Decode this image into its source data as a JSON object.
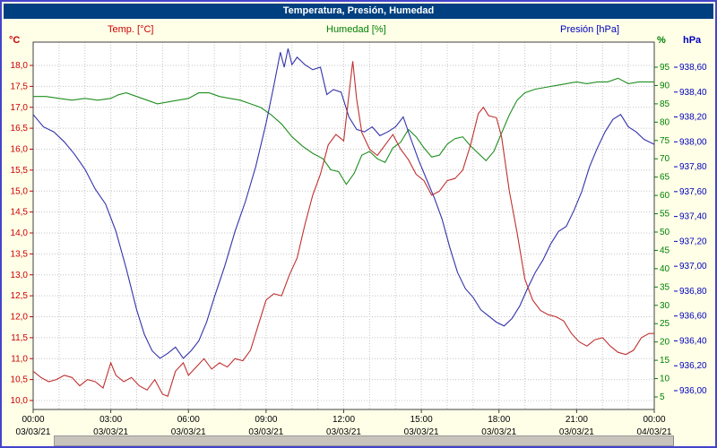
{
  "window": {
    "title": "Temperatura, Presión, Humedad"
  },
  "legend": {
    "temp": "Temp. [°C]",
    "humidity": "Humedad [%]",
    "pressure": "Presión [hPa]"
  },
  "axes": {
    "temp": {
      "unit": "°C",
      "color": "#CC0000",
      "min": 10.0,
      "max": 18.0,
      "tick_labels": [
        "18,0",
        "17,5",
        "17,0",
        "16,5",
        "16,0",
        "15,5",
        "15,0",
        "14,5",
        "14,0",
        "13,5",
        "13,0",
        "12,5",
        "12,0",
        "11,5",
        "11,0",
        "10,5",
        "10,0"
      ]
    },
    "humidity": {
      "unit": "%",
      "color": "#007F00",
      "min": 5,
      "max": 95,
      "tick_labels": [
        "95",
        "90",
        "85",
        "80",
        "75",
        "70",
        "65",
        "60",
        "55",
        "50",
        "45",
        "40",
        "35",
        "30",
        "25",
        "20",
        "15",
        "10",
        "5"
      ]
    },
    "pressure": {
      "unit": "hPa",
      "color": "#0000BB",
      "min": 936.0,
      "max": 938.6,
      "tick_labels": [
        "938,60",
        "938,40",
        "938,20",
        "938,00",
        "937,80",
        "937,60",
        "937,40",
        "937,20",
        "937,00",
        "936,80",
        "936,60",
        "936,40",
        "936,20",
        "936,00"
      ]
    },
    "x": {
      "time_labels": [
        "00:00",
        "03:00",
        "06:00",
        "09:00",
        "12:00",
        "15:00",
        "18:00",
        "21:00",
        "00:00"
      ],
      "date_labels": [
        "03/03/21",
        "03/03/21",
        "03/03/21",
        "03/03/21",
        "03/03/21",
        "03/03/21",
        "03/03/21",
        "03/03/21",
        "04/03/21"
      ]
    }
  },
  "chart_data": {
    "type": "line",
    "title": "Temperatura, Presión, Humedad",
    "x_axis": {
      "start": "03/03/21 00:00",
      "end": "04/03/21 00:00",
      "unit": "hours",
      "tick_interval_hours": 3
    },
    "grid": true,
    "legend_position": "top",
    "series": [
      {
        "name": "Humedad [%]",
        "axis": "humidity",
        "color": "#1F8F1F",
        "ylim": [
          5,
          95
        ],
        "points": [
          [
            0,
            87
          ],
          [
            0.5,
            87
          ],
          [
            1,
            86.5
          ],
          [
            1.5,
            86
          ],
          [
            2,
            86.5
          ],
          [
            2.5,
            86
          ],
          [
            3,
            86.5
          ],
          [
            3.3,
            87.5
          ],
          [
            3.6,
            88
          ],
          [
            4,
            87
          ],
          [
            4.4,
            86
          ],
          [
            4.8,
            85
          ],
          [
            5.2,
            85.5
          ],
          [
            5.6,
            86
          ],
          [
            6,
            86.5
          ],
          [
            6.4,
            88
          ],
          [
            6.8,
            88
          ],
          [
            7.2,
            87
          ],
          [
            7.6,
            86.5
          ],
          [
            8,
            86
          ],
          [
            8.4,
            85
          ],
          [
            8.8,
            84
          ],
          [
            9.2,
            82
          ],
          [
            9.6,
            79.5
          ],
          [
            10,
            76
          ],
          [
            10.4,
            73.5
          ],
          [
            10.8,
            71.5
          ],
          [
            11.2,
            70
          ],
          [
            11.5,
            67
          ],
          [
            11.8,
            66.5
          ],
          [
            12.1,
            63
          ],
          [
            12.4,
            66
          ],
          [
            12.7,
            71
          ],
          [
            13,
            72
          ],
          [
            13.3,
            70
          ],
          [
            13.6,
            69
          ],
          [
            13.9,
            73
          ],
          [
            14.2,
            74.5
          ],
          [
            14.5,
            78
          ],
          [
            14.8,
            76
          ],
          [
            15.1,
            73
          ],
          [
            15.4,
            70.5
          ],
          [
            15.7,
            71
          ],
          [
            16,
            74
          ],
          [
            16.3,
            75.5
          ],
          [
            16.6,
            76
          ],
          [
            16.9,
            73.5
          ],
          [
            17.2,
            71.5
          ],
          [
            17.5,
            69.5
          ],
          [
            17.8,
            72
          ],
          [
            18.1,
            77
          ],
          [
            18.4,
            82
          ],
          [
            18.7,
            86
          ],
          [
            19,
            88
          ],
          [
            19.4,
            89
          ],
          [
            19.8,
            89.5
          ],
          [
            20.2,
            90
          ],
          [
            20.6,
            90.5
          ],
          [
            21,
            91
          ],
          [
            21.4,
            90.5
          ],
          [
            21.8,
            91
          ],
          [
            22.2,
            91
          ],
          [
            22.6,
            92
          ],
          [
            23,
            90.5
          ],
          [
            23.4,
            91
          ],
          [
            23.8,
            91
          ],
          [
            24,
            91
          ]
        ]
      },
      {
        "name": "Presión [hPa]",
        "axis": "pressure",
        "color": "#3333AA",
        "ylim": [
          936.0,
          938.6
        ],
        "points": [
          [
            0,
            938.22
          ],
          [
            0.4,
            938.12
          ],
          [
            0.8,
            938.08
          ],
          [
            1.2,
            938.0
          ],
          [
            1.6,
            937.9
          ],
          [
            2.0,
            937.78
          ],
          [
            2.4,
            937.62
          ],
          [
            2.8,
            937.5
          ],
          [
            3.2,
            937.28
          ],
          [
            3.6,
            936.98
          ],
          [
            4.0,
            936.65
          ],
          [
            4.3,
            936.45
          ],
          [
            4.6,
            936.32
          ],
          [
            4.9,
            936.26
          ],
          [
            5.2,
            936.3
          ],
          [
            5.5,
            936.35
          ],
          [
            5.8,
            936.26
          ],
          [
            6.1,
            936.32
          ],
          [
            6.4,
            936.4
          ],
          [
            6.7,
            936.55
          ],
          [
            7.0,
            936.75
          ],
          [
            7.4,
            937.0
          ],
          [
            7.8,
            937.28
          ],
          [
            8.2,
            937.52
          ],
          [
            8.6,
            937.8
          ],
          [
            9.0,
            938.15
          ],
          [
            9.3,
            938.45
          ],
          [
            9.55,
            938.72
          ],
          [
            9.7,
            938.6
          ],
          [
            9.85,
            938.75
          ],
          [
            10.0,
            938.62
          ],
          [
            10.2,
            938.68
          ],
          [
            10.5,
            938.62
          ],
          [
            10.8,
            938.58
          ],
          [
            11.1,
            938.6
          ],
          [
            11.35,
            938.38
          ],
          [
            11.6,
            938.42
          ],
          [
            11.9,
            938.4
          ],
          [
            12.2,
            938.2
          ],
          [
            12.5,
            938.1
          ],
          [
            12.8,
            938.08
          ],
          [
            13.1,
            938.12
          ],
          [
            13.4,
            938.05
          ],
          [
            13.7,
            938.08
          ],
          [
            14.0,
            938.12
          ],
          [
            14.3,
            938.2
          ],
          [
            14.6,
            938.02
          ],
          [
            14.9,
            937.85
          ],
          [
            15.2,
            937.7
          ],
          [
            15.5,
            937.55
          ],
          [
            15.8,
            937.38
          ],
          [
            16.1,
            937.15
          ],
          [
            16.4,
            936.95
          ],
          [
            16.7,
            936.82
          ],
          [
            17.0,
            936.75
          ],
          [
            17.3,
            936.65
          ],
          [
            17.6,
            936.6
          ],
          [
            17.9,
            936.55
          ],
          [
            18.2,
            936.52
          ],
          [
            18.5,
            936.58
          ],
          [
            18.8,
            936.68
          ],
          [
            19.1,
            936.82
          ],
          [
            19.4,
            936.95
          ],
          [
            19.7,
            937.05
          ],
          [
            20.0,
            937.18
          ],
          [
            20.3,
            937.28
          ],
          [
            20.6,
            937.32
          ],
          [
            20.9,
            937.45
          ],
          [
            21.2,
            937.6
          ],
          [
            21.5,
            937.8
          ],
          [
            21.8,
            937.95
          ],
          [
            22.1,
            938.08
          ],
          [
            22.4,
            938.18
          ],
          [
            22.7,
            938.22
          ],
          [
            23.0,
            938.12
          ],
          [
            23.3,
            938.08
          ],
          [
            23.6,
            938.02
          ],
          [
            24,
            937.98
          ]
        ]
      },
      {
        "name": "Temp. [°C]",
        "axis": "temp",
        "color": "#C03030",
        "ylim": [
          10.0,
          18.0
        ],
        "points": [
          [
            0,
            10.7
          ],
          [
            0.3,
            10.55
          ],
          [
            0.6,
            10.45
          ],
          [
            0.9,
            10.5
          ],
          [
            1.2,
            10.6
          ],
          [
            1.5,
            10.55
          ],
          [
            1.8,
            10.35
          ],
          [
            2.1,
            10.5
          ],
          [
            2.4,
            10.45
          ],
          [
            2.7,
            10.3
          ],
          [
            3.0,
            10.9
          ],
          [
            3.2,
            10.6
          ],
          [
            3.5,
            10.45
          ],
          [
            3.8,
            10.55
          ],
          [
            4.1,
            10.35
          ],
          [
            4.4,
            10.25
          ],
          [
            4.7,
            10.5
          ],
          [
            5.0,
            10.15
          ],
          [
            5.2,
            10.1
          ],
          [
            5.5,
            10.7
          ],
          [
            5.8,
            10.9
          ],
          [
            6.0,
            10.6
          ],
          [
            6.3,
            10.8
          ],
          [
            6.6,
            11.0
          ],
          [
            6.9,
            10.75
          ],
          [
            7.2,
            10.9
          ],
          [
            7.5,
            10.8
          ],
          [
            7.8,
            11.0
          ],
          [
            8.1,
            10.95
          ],
          [
            8.4,
            11.2
          ],
          [
            8.7,
            11.8
          ],
          [
            9.0,
            12.4
          ],
          [
            9.3,
            12.55
          ],
          [
            9.6,
            12.5
          ],
          [
            9.9,
            13.0
          ],
          [
            10.2,
            13.4
          ],
          [
            10.5,
            14.2
          ],
          [
            10.8,
            14.9
          ],
          [
            11.1,
            15.4
          ],
          [
            11.4,
            16.1
          ],
          [
            11.7,
            16.35
          ],
          [
            12.0,
            16.2
          ],
          [
            12.2,
            17.3
          ],
          [
            12.35,
            18.1
          ],
          [
            12.5,
            17.2
          ],
          [
            12.7,
            16.4
          ],
          [
            13.0,
            16.0
          ],
          [
            13.3,
            15.85
          ],
          [
            13.6,
            16.1
          ],
          [
            13.9,
            16.35
          ],
          [
            14.2,
            16.0
          ],
          [
            14.5,
            15.75
          ],
          [
            14.8,
            15.4
          ],
          [
            15.1,
            15.25
          ],
          [
            15.4,
            14.9
          ],
          [
            15.7,
            15.0
          ],
          [
            16.0,
            15.25
          ],
          [
            16.3,
            15.3
          ],
          [
            16.6,
            15.5
          ],
          [
            16.9,
            16.1
          ],
          [
            17.2,
            16.85
          ],
          [
            17.4,
            17.0
          ],
          [
            17.6,
            16.8
          ],
          [
            17.9,
            16.75
          ],
          [
            18.1,
            16.3
          ],
          [
            18.4,
            15.0
          ],
          [
            18.7,
            14.0
          ],
          [
            19.0,
            12.9
          ],
          [
            19.3,
            12.4
          ],
          [
            19.6,
            12.15
          ],
          [
            19.9,
            12.05
          ],
          [
            20.2,
            12.0
          ],
          [
            20.5,
            11.9
          ],
          [
            20.8,
            11.6
          ],
          [
            21.1,
            11.4
          ],
          [
            21.4,
            11.3
          ],
          [
            21.7,
            11.45
          ],
          [
            22.0,
            11.5
          ],
          [
            22.3,
            11.3
          ],
          [
            22.6,
            11.15
          ],
          [
            22.9,
            11.1
          ],
          [
            23.2,
            11.2
          ],
          [
            23.5,
            11.5
          ],
          [
            23.8,
            11.6
          ],
          [
            24,
            11.6
          ]
        ]
      }
    ]
  }
}
